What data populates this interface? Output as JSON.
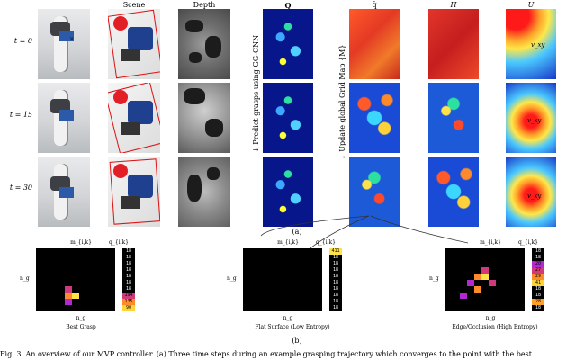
{
  "columns": {
    "scene": "Scene",
    "depth": "Depth",
    "q": "Q",
    "qbar": "q̄",
    "h": "H",
    "u": "U"
  },
  "rows": [
    {
      "label": "t = 0"
    },
    {
      "label": "t = 15"
    },
    {
      "label": "t = 30"
    }
  ],
  "side_labels": {
    "predict": "↓ Predict grasps using GG-CNN",
    "update": "↓ Update global Grid Map {M}"
  },
  "vectors": {
    "v0": "v",
    "v_xy": "v_xy",
    "v_xy2": "v_xy",
    "v_xy3": "v_xy"
  },
  "sub_a": "(a)",
  "sub_b": "(b)",
  "grids": [
    {
      "title": "m_{i,k}",
      "qtitle": "q_{i,k}",
      "ylabel": "n_g",
      "xlabel": "n_g",
      "caption": "Best Grasp",
      "q_values": [
        "18",
        "18",
        "18",
        "18",
        "18",
        "18",
        "18",
        "194",
        "135",
        "90"
      ]
    },
    {
      "title": "m_{i,k}",
      "qtitle": "q_{i,k}",
      "ylabel": "n_g",
      "xlabel": "n_g",
      "caption": "Flat Surface (Low Entropy)",
      "q_values": [
        "411",
        "18",
        "18",
        "18",
        "18",
        "18",
        "18",
        "18",
        "18",
        "18"
      ]
    },
    {
      "title": "m_{i,k}",
      "qtitle": "q_{i,k}",
      "ylabel": "n_g",
      "xlabel": "n_g",
      "caption": "Edge/Occlusion (High Entropy)",
      "q_values": [
        "18",
        "18",
        "20",
        "27",
        "29",
        "41",
        "18",
        "18",
        "28",
        "18"
      ]
    }
  ],
  "caption": "Fig. 3.   An overview of our MVP controller. (a) Three time steps during an example grasping trajectory which converges to the point with the best"
}
